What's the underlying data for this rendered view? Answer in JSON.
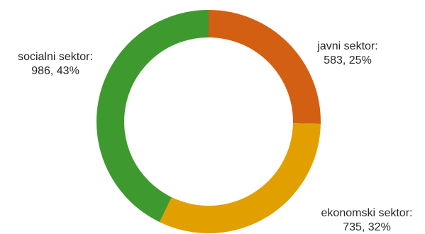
{
  "chart_data": {
    "type": "pie",
    "title": "",
    "donut": true,
    "slices": [
      {
        "label": "javni sektor:",
        "value": 583,
        "percent": "25%",
        "value_text": "583, 25%",
        "color": "#d35f12"
      },
      {
        "label": "ekonomski sektor:",
        "value": 735,
        "percent": "32%",
        "value_text": "735, 32%",
        "color": "#e2a000"
      },
      {
        "label": "socialni sektor:",
        "value": 986,
        "percent": "43%",
        "value_text": "986, 43%",
        "color": "#3e9a2e"
      }
    ]
  }
}
